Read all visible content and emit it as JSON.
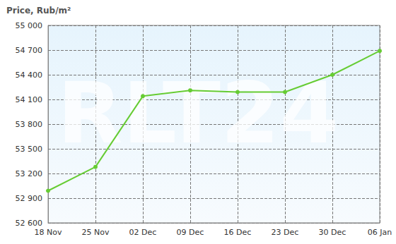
{
  "chart_data": {
    "type": "line",
    "title": "Price, Rub/m²",
    "watermark": "RLT24",
    "categories": [
      "18 Nov",
      "25 Nov",
      "02 Dec",
      "09 Dec",
      "16 Dec",
      "23 Dec",
      "30 Dec",
      "06 Jan"
    ],
    "values": [
      52990,
      53280,
      54140,
      54210,
      54190,
      54190,
      54400,
      54690
    ],
    "color": "#66cc33",
    "marker": "circle",
    "ylim": [
      52600,
      55000
    ],
    "yticks": [
      {
        "value": 52600,
        "label": "52 600"
      },
      {
        "value": 52900,
        "label": "52 900"
      },
      {
        "value": 53200,
        "label": "53 200"
      },
      {
        "value": 53500,
        "label": "53 500"
      },
      {
        "value": 53800,
        "label": "53 800"
      },
      {
        "value": 54100,
        "label": "54 100"
      },
      {
        "value": 54400,
        "label": "54 400"
      },
      {
        "value": 54700,
        "label": "54 700"
      },
      {
        "value": 55000,
        "label": "55 000"
      }
    ],
    "grid": true
  }
}
